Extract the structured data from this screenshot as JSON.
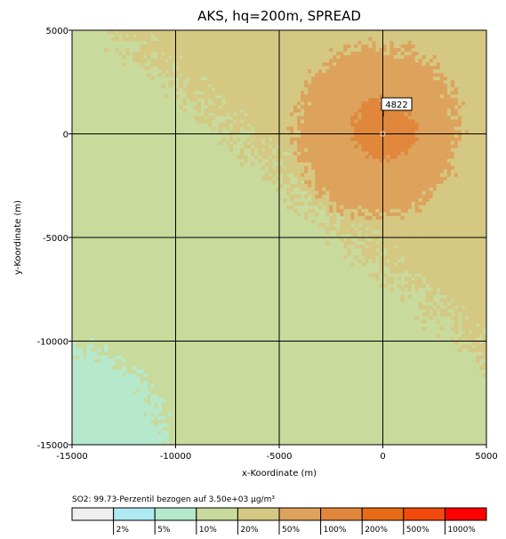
{
  "chart_data": {
    "type": "heatmap",
    "title": "AKS, hq=200m, SPREAD",
    "xlabel": "x-Koordinate (m)",
    "ylabel": "y-Koordinate (m)",
    "xlim": [
      -15000,
      5000
    ],
    "ylim": [
      -15000,
      5000
    ],
    "xticks": [
      -15000,
      -10000,
      -5000,
      0,
      5000
    ],
    "yticks": [
      -15000,
      -10000,
      -5000,
      0,
      5000
    ],
    "xtick_labels": [
      "-15000",
      "-10000",
      "-5000",
      "0",
      "5000"
    ],
    "ytick_labels": [
      "-15000",
      "-10000",
      "-5000",
      "0",
      "5000"
    ],
    "grid": true,
    "max_annotation": {
      "label": "4822",
      "x": 0,
      "y": 1000
    },
    "source_location": [
      0,
      0
    ],
    "regions": [
      {
        "class": "5%",
        "description": "lower-left corner",
        "approx_extent": {
          "x": [
            -15000,
            -10500
          ],
          "y": [
            -15000,
            -10300
          ]
        }
      },
      {
        "class": "10%",
        "description": "south-west half",
        "approx_extent": {
          "x": [
            -15000,
            5000
          ],
          "y": [
            -15000,
            -2000
          ]
        }
      },
      {
        "class": "20%",
        "description": "north-east diagonal band",
        "approx_extent": {
          "x": [
            -12000,
            5000
          ],
          "y": [
            -10000,
            5000
          ]
        }
      },
      {
        "class": "50%",
        "description": "plume around source",
        "approx_extent": {
          "x": [
            -4200,
            3700
          ],
          "y": [
            -4000,
            4300
          ]
        }
      },
      {
        "class": "100%",
        "description": "core near source",
        "approx_extent": {
          "x": [
            -1500,
            1800
          ],
          "y": [
            -1300,
            1700
          ]
        }
      }
    ],
    "legend": {
      "title": "SO2: 99.73-Perzentil bezogen auf 3.50e+03 µg/m³",
      "placement": "bottom",
      "classes": [
        {
          "label": "",
          "color": "#eeeeee"
        },
        {
          "label": "2%",
          "color": "#aeeaf2"
        },
        {
          "label": "5%",
          "color": "#b6e8cc"
        },
        {
          "label": "10%",
          "color": "#c8da9c"
        },
        {
          "label": "20%",
          "color": "#d5c882"
        },
        {
          "label": "50%",
          "color": "#dda35c"
        },
        {
          "label": "100%",
          "color": "#e0873c"
        },
        {
          "label": "200%",
          "color": "#e86a14"
        },
        {
          "label": "500%",
          "color": "#f24a0c"
        },
        {
          "label": "1000%",
          "color": "#fe0000"
        }
      ]
    }
  }
}
